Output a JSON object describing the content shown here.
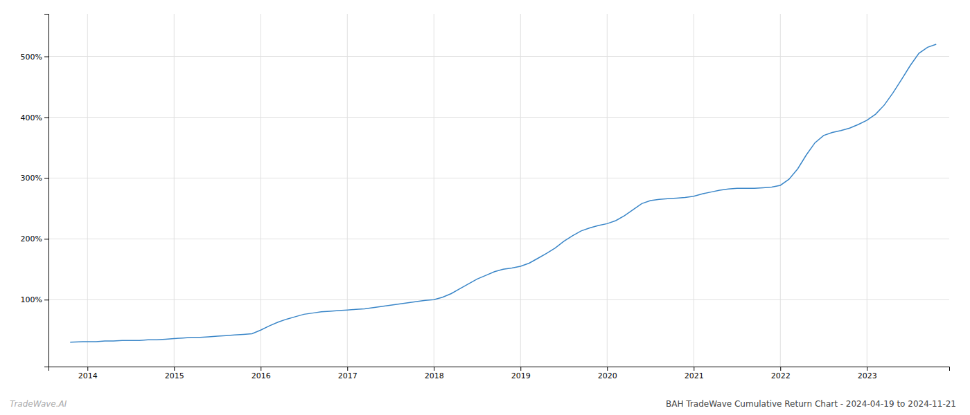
{
  "chart_data": {
    "type": "line",
    "title": "BAH TradeWave Cumulative Return Chart - 2024-04-19 to 2024-11-21",
    "annotations": [
      "TradeWave.AI"
    ],
    "color": "#3a86c8",
    "grid": true,
    "xlim": [
      2013.55,
      2023.95
    ],
    "xticks": [
      2014,
      2015,
      2016,
      2017,
      2018,
      2019,
      2020,
      2021,
      2022,
      2023
    ],
    "ylim": [
      -10,
      570
    ],
    "yticks": [
      {
        "value": 100,
        "label": "100%"
      },
      {
        "value": 200,
        "label": "200%"
      },
      {
        "value": 300,
        "label": "300%"
      },
      {
        "value": 400,
        "label": "400%"
      },
      {
        "value": 500,
        "label": "500%"
      }
    ],
    "x": [
      2013.8,
      2013.95,
      2014.0,
      2014.1,
      2014.2,
      2014.3,
      2014.4,
      2014.5,
      2014.6,
      2014.7,
      2014.8,
      2014.9,
      2015.0,
      2015.1,
      2015.2,
      2015.3,
      2015.4,
      2015.5,
      2015.6,
      2015.7,
      2015.8,
      2015.9,
      2016.0,
      2016.1,
      2016.2,
      2016.3,
      2016.4,
      2016.5,
      2016.6,
      2016.7,
      2016.8,
      2016.9,
      2017.0,
      2017.1,
      2017.2,
      2017.3,
      2017.4,
      2017.5,
      2017.6,
      2017.7,
      2017.8,
      2017.9,
      2018.0,
      2018.1,
      2018.2,
      2018.3,
      2018.4,
      2018.5,
      2018.6,
      2018.7,
      2018.8,
      2018.9,
      2019.0,
      2019.1,
      2019.2,
      2019.3,
      2019.4,
      2019.5,
      2019.6,
      2019.7,
      2019.8,
      2019.9,
      2020.0,
      2020.1,
      2020.2,
      2020.3,
      2020.4,
      2020.5,
      2020.6,
      2020.7,
      2020.8,
      2020.9,
      2021.0,
      2021.1,
      2021.2,
      2021.3,
      2021.4,
      2021.5,
      2021.6,
      2021.7,
      2021.8,
      2021.9,
      2022.0,
      2022.1,
      2022.2,
      2022.3,
      2022.4,
      2022.5,
      2022.6,
      2022.7,
      2022.8,
      2022.9,
      2023.0,
      2023.1,
      2023.2,
      2023.3,
      2023.4,
      2023.5,
      2023.6,
      2023.7,
      2023.8
    ],
    "values": [
      30,
      31,
      31,
      31,
      32,
      32,
      33,
      33,
      33,
      34,
      34,
      35,
      36,
      37,
      38,
      38,
      39,
      40,
      41,
      42,
      43,
      44,
      50,
      57,
      63,
      68,
      72,
      76,
      78,
      80,
      81,
      82,
      83,
      84,
      85,
      87,
      89,
      91,
      93,
      95,
      97,
      99,
      100,
      104,
      110,
      118,
      126,
      134,
      140,
      146,
      150,
      152,
      155,
      160,
      168,
      176,
      185,
      196,
      205,
      213,
      218,
      222,
      225,
      230,
      238,
      248,
      258,
      263,
      265,
      266,
      267,
      268,
      270,
      274,
      277,
      280,
      282,
      283,
      283,
      283,
      284,
      285,
      288,
      298,
      315,
      338,
      358,
      370,
      375,
      378,
      382,
      388,
      395,
      405,
      420,
      440,
      462,
      485,
      505,
      515,
      520
    ]
  }
}
